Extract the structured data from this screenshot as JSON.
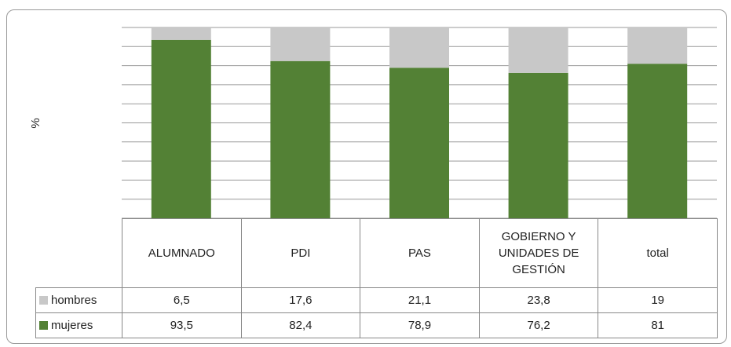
{
  "chart_data": {
    "type": "bar",
    "stacked": true,
    "y_label": "%",
    "categories": [
      "ALUMNADO",
      "PDI",
      "PAS",
      "GOBIERNO Y UNIDADES DE GESTIÓN",
      "total"
    ],
    "series": [
      {
        "name": "hombres",
        "color": "#c8c8c8",
        "values": [
          6.5,
          17.6,
          21.1,
          23.8,
          19
        ],
        "value_labels": [
          "6,5",
          "17,6",
          "21,1",
          "23,8",
          "19"
        ]
      },
      {
        "name": "mujeres",
        "color": "#538135",
        "values": [
          93.5,
          82.4,
          78.9,
          76.2,
          81
        ],
        "value_labels": [
          "93,5",
          "82,4",
          "78,9",
          "76,2",
          "81"
        ]
      }
    ],
    "ylim": [
      0,
      100
    ],
    "yticks": [
      0,
      10,
      20,
      30,
      40,
      50,
      60,
      70,
      80,
      90,
      100
    ],
    "grid": true
  }
}
